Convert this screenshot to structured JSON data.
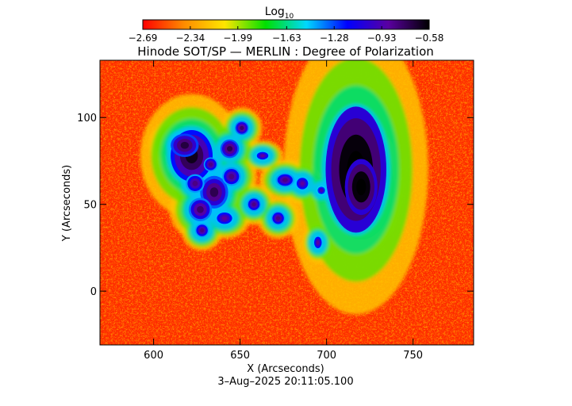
{
  "chart_data": {
    "type": "heatmap",
    "title": "Hinode SOT/SP — MERLIN : Degree of Polarization",
    "xlabel": "X (Arcseconds)",
    "ylabel": "Y (Arcseconds)",
    "timestamp": "3–Aug–2025 20:11:05.100",
    "xlim": [
      569,
      785
    ],
    "ylim": [
      -31,
      133
    ],
    "x_ticks": [
      600,
      650,
      700,
      750
    ],
    "y_ticks": [
      0,
      50,
      100
    ],
    "colorbar": {
      "label": "Log",
      "label_subscript": "10",
      "ticks": [
        "−2.69",
        "−2.34",
        "−1.99",
        "−1.63",
        "−1.28",
        "−0.93",
        "−0.58"
      ],
      "tick_values": [
        -2.69,
        -2.34,
        -1.99,
        -1.63,
        -1.28,
        -0.93,
        -0.58
      ],
      "range": [
        -2.69,
        -0.58
      ],
      "colors": [
        "#ff0000",
        "#ff8a00",
        "#ffe600",
        "#00e000",
        "#00d8ff",
        "#0000ff",
        "#5a00a0",
        "#000000"
      ]
    },
    "background_value": -2.69,
    "features": [
      {
        "x": 622,
        "y": 78,
        "rx": 9,
        "ry": 11,
        "level": -0.75
      },
      {
        "x": 618,
        "y": 84,
        "rx": 6,
        "ry": 5,
        "level": -0.82
      },
      {
        "x": 635,
        "y": 57,
        "rx": 6,
        "ry": 7,
        "level": -0.85
      },
      {
        "x": 627,
        "y": 47,
        "rx": 5,
        "ry": 5,
        "level": -0.9
      },
      {
        "x": 644,
        "y": 82,
        "rx": 4,
        "ry": 4,
        "level": -0.85
      },
      {
        "x": 651,
        "y": 94,
        "rx": 3,
        "ry": 3,
        "level": -0.9
      },
      {
        "x": 633,
        "y": 73,
        "rx": 3,
        "ry": 3,
        "level": -0.95
      },
      {
        "x": 624,
        "y": 62,
        "rx": 4,
        "ry": 4,
        "level": -0.95
      },
      {
        "x": 645,
        "y": 66,
        "rx": 4,
        "ry": 4,
        "level": -0.95
      },
      {
        "x": 628,
        "y": 35,
        "rx": 3,
        "ry": 3,
        "level": -0.95
      },
      {
        "x": 641,
        "y": 42,
        "rx": 4,
        "ry": 3,
        "level": -1.0
      },
      {
        "x": 658,
        "y": 50,
        "rx": 3,
        "ry": 3,
        "level": -0.95
      },
      {
        "x": 663,
        "y": 78,
        "rx": 3,
        "ry": 2,
        "level": -1.0
      },
      {
        "x": 672,
        "y": 42,
        "rx": 3,
        "ry": 3,
        "level": -0.95
      },
      {
        "x": 676,
        "y": 64,
        "rx": 4,
        "ry": 3,
        "level": -0.95
      },
      {
        "x": 686,
        "y": 62,
        "rx": 3,
        "ry": 3,
        "level": -1.0
      },
      {
        "x": 695,
        "y": 28,
        "rx": 2,
        "ry": 3,
        "level": -1.0
      },
      {
        "x": 697,
        "y": 58,
        "rx": 2,
        "ry": 2,
        "level": -1.05
      },
      {
        "x": 717,
        "y": 70,
        "rx": 13,
        "ry": 27,
        "level": -0.6
      },
      {
        "x": 720,
        "y": 60,
        "rx": 7,
        "ry": 12,
        "level": -0.6
      }
    ]
  }
}
